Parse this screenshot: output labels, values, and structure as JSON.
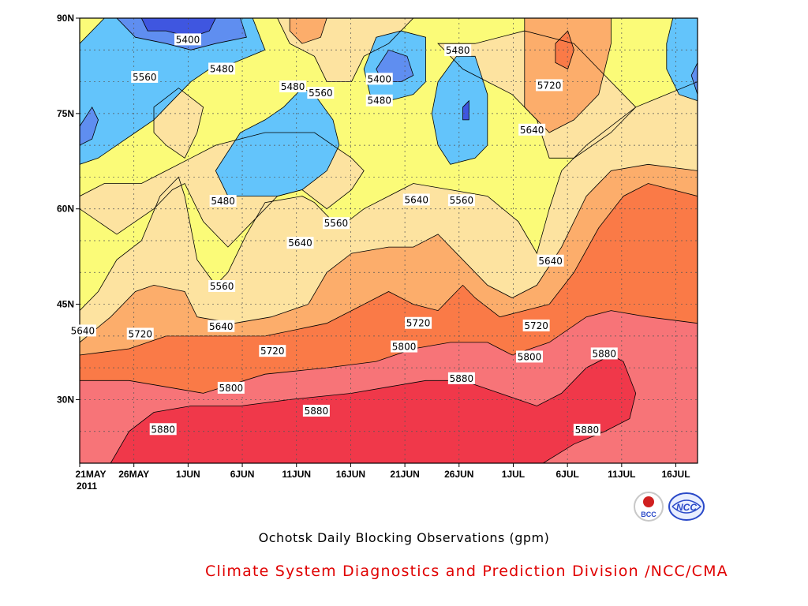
{
  "chart_data": {
    "type": "contour",
    "title": "Ochotsk Daily Blocking Observations (gpm)",
    "xlabel": "",
    "ylabel": "",
    "x_ticks": [
      "21MAY",
      "26MAY",
      "1JUN",
      "6JUN",
      "11JUN",
      "16JUN",
      "21JUN",
      "26JUN",
      "1JUL",
      "6JUL",
      "11JUL",
      "16JUL"
    ],
    "x_year": "2011",
    "y_ticks": [
      "90N",
      "75N",
      "60N",
      "45N",
      "30N"
    ],
    "ylim": [
      20,
      90
    ],
    "grid": "dotted",
    "levels": [
      5320,
      5400,
      5480,
      5560,
      5640,
      5720,
      5800,
      5880
    ],
    "fill_colors": [
      "#3f56e0",
      "#5f8ef0",
      "#63c4fb",
      "#fbfb78",
      "#fde3a0",
      "#fcad6b",
      "#fa7a47",
      "#f77478",
      "#f0384a"
    ],
    "contour_labels": [
      {
        "x": 17.5,
        "y": 86.6,
        "text": "5400"
      },
      {
        "x": 23,
        "y": 82,
        "text": "5480"
      },
      {
        "x": 10.5,
        "y": 80.7,
        "text": "5560"
      },
      {
        "x": 34.5,
        "y": 79.2,
        "text": "5480"
      },
      {
        "x": 39,
        "y": 78.2,
        "text": "5560"
      },
      {
        "x": 48.5,
        "y": 80.4,
        "text": "5400"
      },
      {
        "x": 48.5,
        "y": 77,
        "text": "5480"
      },
      {
        "x": 61.2,
        "y": 84.9,
        "text": "5480"
      },
      {
        "x": 76,
        "y": 79.4,
        "text": "5720"
      },
      {
        "x": 73.2,
        "y": 72.4,
        "text": "5640"
      },
      {
        "x": 23.2,
        "y": 61.2,
        "text": "5480"
      },
      {
        "x": 41.5,
        "y": 57.7,
        "text": "5560"
      },
      {
        "x": 54.5,
        "y": 61.4,
        "text": "5640"
      },
      {
        "x": 61.8,
        "y": 61.3,
        "text": "5560"
      },
      {
        "x": 35.7,
        "y": 54.6,
        "text": "5640"
      },
      {
        "x": 76.2,
        "y": 51.8,
        "text": "5640"
      },
      {
        "x": 23,
        "y": 47.8,
        "text": "5560"
      },
      {
        "x": 0.5,
        "y": 40.8,
        "text": "5640"
      },
      {
        "x": 9.8,
        "y": 40.3,
        "text": "5720"
      },
      {
        "x": 22.9,
        "y": 41.5,
        "text": "5640"
      },
      {
        "x": 31.2,
        "y": 37.6,
        "text": "5720"
      },
      {
        "x": 54.8,
        "y": 42,
        "text": "5720"
      },
      {
        "x": 73.9,
        "y": 41.6,
        "text": "5720"
      },
      {
        "x": 52.5,
        "y": 38.3,
        "text": "5800"
      },
      {
        "x": 72.8,
        "y": 36.7,
        "text": "5800"
      },
      {
        "x": 84.9,
        "y": 37.2,
        "text": "5880"
      },
      {
        "x": 24.5,
        "y": 31.8,
        "text": "5800"
      },
      {
        "x": 61.8,
        "y": 33.3,
        "text": "5880"
      },
      {
        "x": 38.3,
        "y": 28.2,
        "text": "5880"
      },
      {
        "x": 13.5,
        "y": 25.3,
        "text": "5880"
      },
      {
        "x": 82.1,
        "y": 25.2,
        "text": "5880"
      }
    ]
  },
  "credit": "Climate System Diagnostics and Prediction Division /NCC/CMA",
  "logos": [
    {
      "name": "bcc-logo",
      "text": "BCC",
      "color": "#d02020"
    },
    {
      "name": "ncc-logo",
      "text": "NCC",
      "color": "#2a49c8"
    }
  ]
}
